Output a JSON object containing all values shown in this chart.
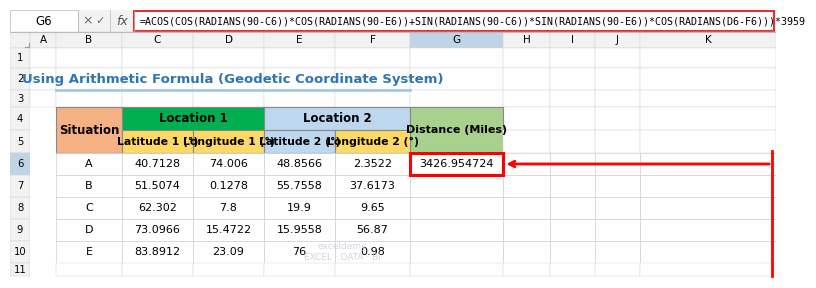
{
  "title": "Using Arithmetic Formula (Geodetic Coordinate System)",
  "formula_bar_text": "=ACOS(COS(RADIANS(90-C6))*COS(RADIANS(90-E6))+SIN(RADIANS(90-C6))*SIN(RADIANS(90-E6))*COS(RADIANS(D6-F6)))*3959",
  "cell_ref": "G6",
  "col_letters": [
    "A",
    "B",
    "C",
    "D",
    "E",
    "F",
    "G",
    "H",
    "I",
    "J",
    "K"
  ],
  "row_numbers": [
    "1",
    "2",
    "3",
    "4",
    "5",
    "6",
    "7",
    "8",
    "9",
    "10",
    "11"
  ],
  "data_rows": [
    [
      "A",
      "40.7128",
      "74.006",
      "48.8566",
      "2.3522",
      "3426.954724"
    ],
    [
      "B",
      "51.5074",
      "0.1278",
      "55.7558",
      "37.6173",
      ""
    ],
    [
      "C",
      "62.302",
      "7.8",
      "19.9",
      "9.65",
      ""
    ],
    [
      "D",
      "73.0966",
      "15.4722",
      "15.9558",
      "56.87",
      ""
    ],
    [
      "E",
      "83.8912",
      "23.09",
      "76",
      "0.98",
      ""
    ]
  ],
  "situation_bg": "#F4B183",
  "loc1_header_bg": "#00B050",
  "loc2_header_bg": "#BDD7EE",
  "distance_header_bg": "#A9D18E",
  "lat1_bg": "#FFD966",
  "lon1_bg": "#FFD966",
  "lat2_bg": "#BDD7EE",
  "lon2_bg": "#FFD966",
  "grid_color": "#D0D0D0",
  "header_bg": "#F2F2F2",
  "col_header_selected_bg": "#C0D4E8",
  "row_header_selected_bg": "#C0D4E8",
  "title_color": "#2E75B6",
  "watermark_text": "exceldemy\nEXCEL · DATA · BI",
  "watermark_color": "#C8C8D8",
  "formula_border_color": "#E03030"
}
